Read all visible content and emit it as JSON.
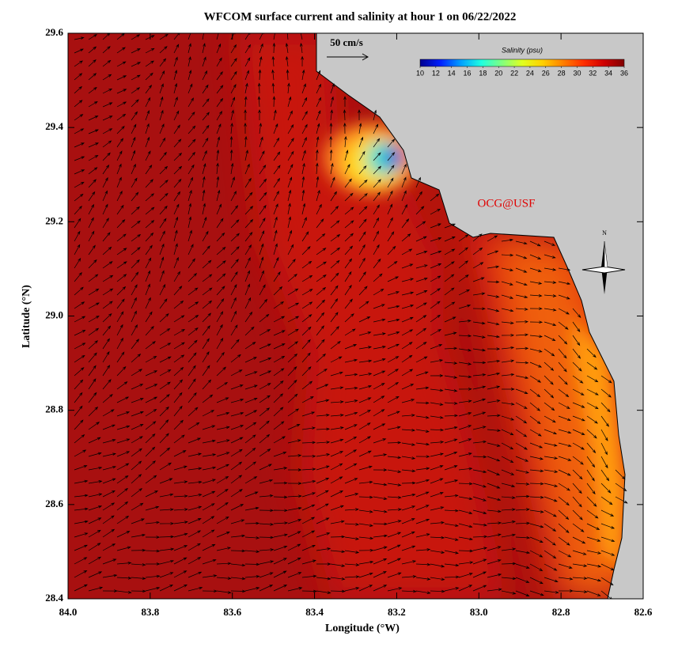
{
  "map": {
    "title": "WFCOM surface current and salinity at hour 1 on 06/22/2022",
    "xlabel": "Longitude (°W)",
    "ylabel": "Latitude (°N)",
    "xlim": [
      84,
      82.6
    ],
    "ylim": [
      28.4,
      29.6
    ],
    "xticks": [
      {
        "value": 84,
        "label": "84.0"
      },
      83.8,
      83.6,
      83.4,
      83.2,
      {
        "value": 83,
        "label": "83.0"
      },
      82.8,
      82.6
    ],
    "yticks": [
      28.4,
      28.6,
      28.8,
      {
        "value": 29,
        "label": "29.0"
      },
      29.2,
      29.4,
      29.6
    ],
    "colorbar": {
      "title": "Salinity (psu)",
      "lim": [
        10,
        36
      ],
      "ticks": [
        10,
        12,
        14,
        16,
        18,
        20,
        22,
        24,
        26,
        28,
        30,
        32,
        34,
        36
      ],
      "colors": [
        "#00008f",
        "#0020ff",
        "#00a0ff",
        "#20ffe0",
        "#80ff80",
        "#e0ff20",
        "#ffd000",
        "#ff8000",
        "#ff3000",
        "#d00000",
        "#800000"
      ]
    },
    "scale_label": "50 cm/s",
    "credit": "OCG@USF",
    "compass": "N"
  }
}
